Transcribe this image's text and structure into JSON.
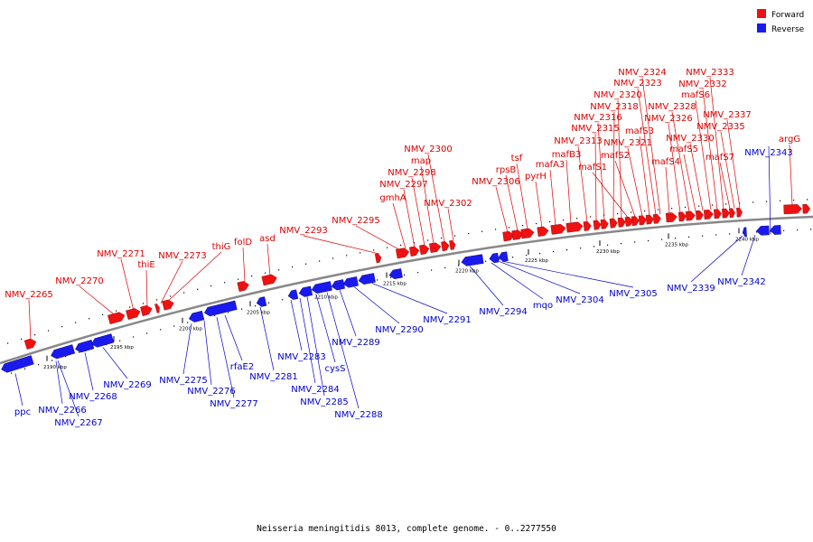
{
  "legend": {
    "forward": {
      "label": "Forward",
      "color": "#ee1111"
    },
    "reverse": {
      "label": "Reverse",
      "color": "#1a1aee"
    }
  },
  "caption": "Neisseria meningitidis 8013, complete genome. - 0..2277550",
  "backbone_color": "#888888",
  "ticks": [
    "2190 kbp",
    "2195 kbp",
    "2200 kbp",
    "2205 kbp",
    "2210 kbp",
    "2215 kbp",
    "2220 kbp",
    "2225 kbp",
    "2230 kbp",
    "2235 kbp",
    "2240 kbp"
  ],
  "forward_labels": [
    "NMV_2265",
    "NMV_2270",
    "NMV_2271",
    "thiE",
    "NMV_2273",
    "thiG",
    "folD",
    "asd",
    "NMV_2293",
    "NMV_2295",
    "gmhA",
    "NMV_2297",
    "NMV_2298",
    "map",
    "NMV_2300",
    "NMV_2302",
    "NMV_2306",
    "rpsB",
    "tsf",
    "pyrH",
    "mafA3",
    "mafB3",
    "NMV_2313",
    "NMV_2315",
    "NMV_2316",
    "NMV_2318",
    "NMV_2320",
    "mafS1",
    "mafS2",
    "NMV_2321",
    "mafS3",
    "NMV_2323",
    "NMV_2324",
    "mafS4",
    "NMV_2326",
    "NMV_2328",
    "mafS5",
    "NMV_2330",
    "mafS6",
    "NMV_2332",
    "NMV_2333",
    "mafS7",
    "NMV_2335",
    "NMV_2337",
    "argG"
  ],
  "reverse_labels": [
    "ppc",
    "NMV_2266",
    "NMV_2267",
    "NMV_2268",
    "NMV_2269",
    "NMV_2275",
    "NMV_2276",
    "NMV_2277",
    "rfaE2",
    "NMV_2281",
    "NMV_2283",
    "NMV_2284",
    "NMV_2285",
    "cysS",
    "NMV_2288",
    "NMV_2289",
    "NMV_2290",
    "NMV_2291",
    "NMV_2294",
    "mqo",
    "NMV_2304",
    "NMV_2305",
    "NMV_2339",
    "NMV_2342",
    "NMV_2343"
  ]
}
